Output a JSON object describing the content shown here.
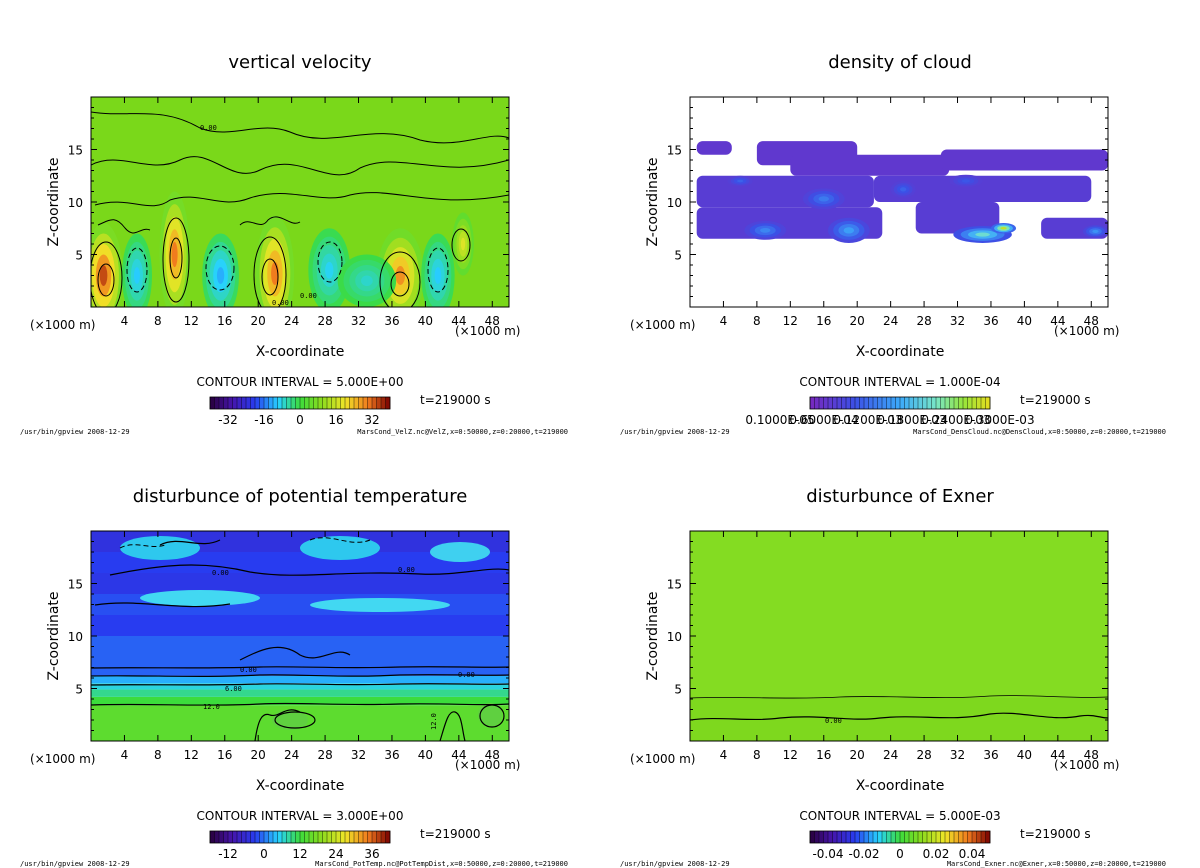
{
  "figure": {
    "footer_path": "/usr/bin/gpview  2008-12-29"
  },
  "chart_data": [
    {
      "type": "heatmap",
      "title": "vertical velocity",
      "xlabel": "X-coordinate",
      "ylabel": "Z-coordinate",
      "x_unit": "(×1000 m)",
      "xlim": [
        0,
        50
      ],
      "ylim": [
        0,
        20
      ],
      "xticks": [
        4,
        8,
        12,
        16,
        20,
        24,
        28,
        32,
        36,
        40,
        44,
        48
      ],
      "yticks": [
        5,
        10,
        15
      ],
      "contour_interval": "CONTOUR INTERVAL = 5.000E+00",
      "time": "t=219000 s",
      "colorbar_ticks": [
        "-32",
        "-16",
        "0",
        "16",
        "32"
      ],
      "colorbar_range": [
        -40,
        40
      ],
      "background_value": 1,
      "contour_labels": [
        "0.00",
        "0.00",
        "0.00"
      ],
      "blobs": [
        {
          "x": 1.5,
          "z": 3,
          "rx": 2.3,
          "rz": 5,
          "v": 34
        },
        {
          "x": 10,
          "z": 5,
          "rx": 1.8,
          "rz": 6,
          "v": 30
        },
        {
          "x": 22,
          "z": 3.2,
          "rx": 2.3,
          "rz": 5.5,
          "v": 30
        },
        {
          "x": 37,
          "z": 3,
          "rx": 2.8,
          "rz": 4.5,
          "v": 28
        },
        {
          "x": 44.5,
          "z": 6,
          "rx": 1.3,
          "rz": 3,
          "v": 18
        },
        {
          "x": 5.5,
          "z": 3,
          "rx": 1.8,
          "rz": 4,
          "v": -10
        },
        {
          "x": 15.5,
          "z": 3,
          "rx": 2.2,
          "rz": 4,
          "v": -12
        },
        {
          "x": 28.5,
          "z": 3.5,
          "rx": 2.5,
          "rz": 4,
          "v": -9
        },
        {
          "x": 33,
          "z": 2.5,
          "rx": 3.5,
          "rz": 2.5,
          "v": -7
        },
        {
          "x": 41.5,
          "z": 3,
          "rx": 2,
          "rz": 4,
          "v": -10
        }
      ],
      "source": "MarsCond_VelZ.nc@VelZ,x=0:50000,z=0:20000,t=219000"
    },
    {
      "type": "heatmap",
      "title": "density of cloud",
      "xlabel": "X-coordinate",
      "ylabel": "Z-coordinate",
      "x_unit": "(×1000 m)",
      "xlim": [
        0,
        50
      ],
      "ylim": [
        0,
        20
      ],
      "xticks": [
        4,
        8,
        12,
        16,
        20,
        24,
        28,
        32,
        36,
        40,
        44,
        48
      ],
      "yticks": [
        5,
        10,
        15
      ],
      "contour_interval": "CONTOUR INTERVAL = 1.000E-04",
      "time": "t=219000 s",
      "colorbar_ticks": [
        "0.1000E-05",
        "0.6000E-04",
        "0.1200E-03",
        "0.1800E-03",
        "0.2400E-03",
        "0.3000E-03"
      ],
      "colorbar_range": [
        0,
        0.0003
      ],
      "bands": [
        {
          "x0": 0.8,
          "x1": 5,
          "z0": 14.5,
          "z1": 15.8,
          "v": 3e-05
        },
        {
          "x0": 8,
          "x1": 20,
          "z0": 13.5,
          "z1": 15.8,
          "v": 3e-05
        },
        {
          "x0": 12,
          "x1": 31,
          "z0": 12.5,
          "z1": 14.5,
          "v": 3e-05
        },
        {
          "x0": 30,
          "x1": 50,
          "z0": 13,
          "z1": 15,
          "v": 3e-05
        },
        {
          "x0": 0.8,
          "x1": 22,
          "z0": 9.5,
          "z1": 12.5,
          "v": 4e-05
        },
        {
          "x0": 22,
          "x1": 48,
          "z0": 10,
          "z1": 12.5,
          "v": 4e-05
        },
        {
          "x0": 0.8,
          "x1": 23,
          "z0": 6.5,
          "z1": 9.5,
          "v": 4e-05
        },
        {
          "x0": 27,
          "x1": 37,
          "z0": 7,
          "z1": 10,
          "v": 4e-05
        },
        {
          "x0": 42,
          "x1": 50,
          "z0": 6.5,
          "z1": 8.5,
          "v": 4e-05
        }
      ],
      "blobs": [
        {
          "x": 9,
          "z": 7.3,
          "rx": 2.5,
          "rz": 0.9,
          "v": 0.00012
        },
        {
          "x": 16,
          "z": 10.3,
          "rx": 2.5,
          "rz": 1,
          "v": 0.00011
        },
        {
          "x": 19,
          "z": 7.3,
          "rx": 2.5,
          "rz": 1.2,
          "v": 0.00014
        },
        {
          "x": 25.5,
          "z": 11.2,
          "rx": 1.5,
          "rz": 0.8,
          "v": 9e-05
        },
        {
          "x": 35,
          "z": 6.9,
          "rx": 3.5,
          "rz": 0.8,
          "v": 0.0002
        },
        {
          "x": 37.5,
          "z": 7.5,
          "rx": 1.5,
          "rz": 0.5,
          "v": 0.00028
        },
        {
          "x": 48.5,
          "z": 7.2,
          "rx": 1.5,
          "rz": 0.6,
          "v": 0.00013
        },
        {
          "x": 6,
          "z": 12,
          "rx": 1.5,
          "rz": 0.5,
          "v": 9e-05
        },
        {
          "x": 33,
          "z": 12,
          "rx": 2,
          "rz": 0.6,
          "v": 8e-05
        }
      ],
      "source": "MarsCond_DensCloud.nc@DensCloud,x=0:50000,z=0:20000,t=219000"
    },
    {
      "type": "heatmap",
      "title": "disturbunce of potential temperature",
      "xlabel": "X-coordinate",
      "ylabel": "Z-coordinate",
      "x_unit": "(×1000 m)",
      "xlim": [
        0,
        50
      ],
      "ylim": [
        0,
        20
      ],
      "xticks": [
        4,
        8,
        12,
        16,
        20,
        24,
        28,
        32,
        36,
        40,
        44,
        48
      ],
      "yticks": [
        5,
        10,
        15
      ],
      "contour_interval": "CONTOUR INTERVAL = 3.000E+00",
      "time": "t=219000 s",
      "colorbar_ticks": [
        "-12",
        "0",
        "12",
        "24",
        "36"
      ],
      "colorbar_range": [
        -18,
        42
      ],
      "layers": [
        {
          "z0": 0,
          "z1": 3.4,
          "v": 15
        },
        {
          "z0": 3.4,
          "z1": 4.2,
          "v": 12
        },
        {
          "z0": 4.2,
          "z1": 4.9,
          "v": 9
        },
        {
          "z0": 4.9,
          "z1": 5.5,
          "v": 6
        },
        {
          "z0": 5.5,
          "z1": 6.2,
          "v": 3
        },
        {
          "z0": 6.2,
          "z1": 10,
          "v": -1
        },
        {
          "z0": 10,
          "z1": 12,
          "v": -3
        },
        {
          "z0": 12,
          "z1": 14,
          "v": -2
        },
        {
          "z0": 14,
          "z1": 16,
          "v": -4
        },
        {
          "z0": 16,
          "z1": 18,
          "v": -3
        },
        {
          "z0": 18,
          "z1": 20,
          "v": -5
        }
      ],
      "contour_lines_z": [
        3.4,
        4.9,
        6.2
      ],
      "contour_labels": [
        "0.00",
        "0.00",
        "0.00",
        "0.00",
        "6.00",
        "12.0",
        "12.0"
      ],
      "source": "MarsCond_PotTemp.nc@PotTempDist,x=0:50000,z=0:20000,t=219000"
    },
    {
      "type": "heatmap",
      "title": "disturbunce of Exner",
      "xlabel": "X-coordinate",
      "ylabel": "Z-coordinate",
      "x_unit": "(×1000 m)",
      "xlim": [
        0,
        50
      ],
      "ylim": [
        0,
        20
      ],
      "xticks": [
        4,
        8,
        12,
        16,
        20,
        24,
        28,
        32,
        36,
        40,
        44,
        48
      ],
      "yticks": [
        5,
        10,
        15
      ],
      "contour_interval": "CONTOUR INTERVAL = 5.000E-03",
      "time": "t=219000 s",
      "colorbar_ticks": [
        "-0.04",
        "-0.02",
        "0",
        "0.02",
        "0.04"
      ],
      "colorbar_range": [
        -0.05,
        0.05
      ],
      "background_value": 0.002,
      "contour_lines_z": [
        2,
        4.1
      ],
      "contour_labels": [
        "0.00"
      ],
      "source": "MarsCond_Exner.nc@Exner,x=0:50000,z=0:20000,t=219000"
    }
  ]
}
